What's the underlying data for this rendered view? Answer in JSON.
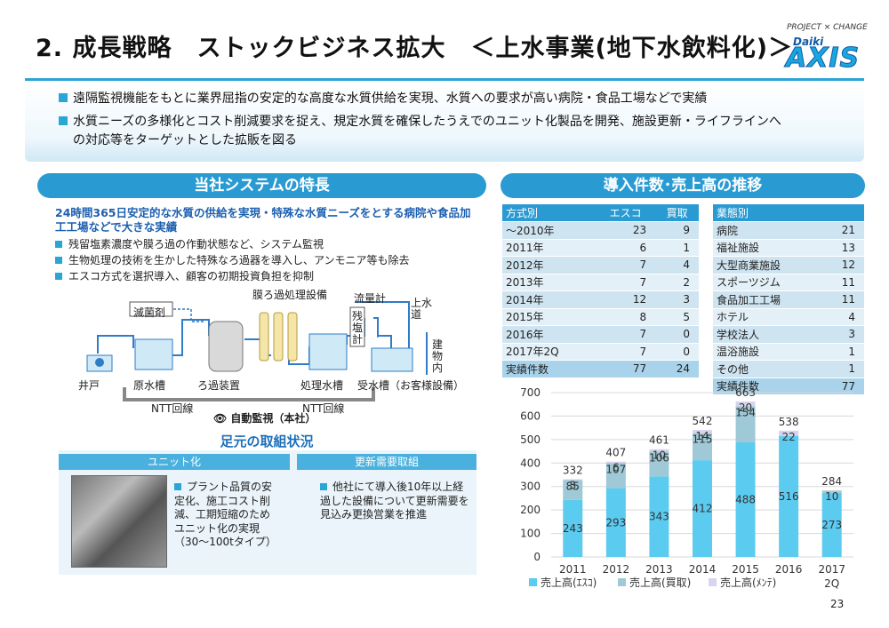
{
  "header": {
    "title": "2. 成長戦略　ストックビジネス拡大　＜上水事業(地下水飲料化)＞",
    "logo_tag": "PROJECT × CHANGE",
    "logo_daiki": "Daiki",
    "logo_axis": "AXIS"
  },
  "bullets": [
    "遠隔監視機能をもとに業界屈指の安定的な高度な水質供給を実現、水質への要求が高い病院・食品工場などで実績",
    "水質ニーズの多様化とコスト削減要求を捉え、規定水質を確保したうえでのユニット化製品を開発、施設更新・ライフラインへ",
    "の対応等をターゲットとした拡販を図る"
  ],
  "features": {
    "heading": "当社システムの特長",
    "lead": "24時間365日安定的な水質の供給を実現・特殊な水質ニーズをとする病院や食品加工工場などで大きな実績",
    "points": [
      "残留塩素濃度や膜ろ過の作動状態など、システム監視",
      "生物処理の技術を生かした特殊なろ過器を導入し、アンモニア等も除去",
      "エスコ方式を選択導入、顧客の初期投資負担を抑制"
    ]
  },
  "diagram": {
    "membrane": "膜ろ過処理設備",
    "flowmeter": "流量計",
    "disinfectant": "滅菌剤",
    "residual_chlorine": "残塩計",
    "water_supply": "上水道",
    "building": "建物内",
    "well": "井戸",
    "raw_tank": "原水槽",
    "filter": "ろ過装置",
    "treat_tank": "処理水槽",
    "recv_tank": "受水槽（お客様設備）",
    "ntt_left": "NTT回線",
    "ntt_right": "NTT回線",
    "monitor": "自動監視（本社）"
  },
  "initiatives": {
    "heading": "足元の取組状況",
    "unit_head": "ユニット化",
    "unit_text": "プラント品質の安定化、施工コスト削減、工期短縮のためユニット化の実現（30～100tタイプ）",
    "renew_head": "更新需要取組",
    "renew_text": "他社にて導入後10年以上経過した設備について更新需要を見込み更換営業を推進"
  },
  "trend": {
    "heading": "導入件数･売上高の推移",
    "table1": {
      "headers": [
        "方式別",
        "エスコ",
        "買取"
      ],
      "rows": [
        [
          "～2010年",
          "23",
          "9"
        ],
        [
          "2011年",
          "6",
          "1"
        ],
        [
          "2012年",
          "7",
          "4"
        ],
        [
          "2013年",
          "7",
          "2"
        ],
        [
          "2014年",
          "12",
          "3"
        ],
        [
          "2015年",
          "8",
          "5"
        ],
        [
          "2016年",
          "7",
          "0"
        ],
        [
          "2017年2Q",
          "7",
          "0"
        ]
      ],
      "total": [
        "実績件数",
        "77",
        "24"
      ]
    },
    "table2": {
      "headers": [
        "業態別",
        ""
      ],
      "rows": [
        [
          "病院",
          "21"
        ],
        [
          "福祉施設",
          "13"
        ],
        [
          "大型商業施設",
          "12"
        ],
        [
          "スポーツジム",
          "11"
        ],
        [
          "食品加工工場",
          "11"
        ],
        [
          "ホテル",
          "4"
        ],
        [
          "学校法人",
          "3"
        ],
        [
          "温浴施設",
          "1"
        ],
        [
          "その他",
          "1"
        ]
      ],
      "total": [
        "実績件数",
        "77"
      ]
    }
  },
  "chart_data": {
    "type": "bar",
    "stacked": true,
    "categories": [
      "2011",
      "2012",
      "2013",
      "2014",
      "2015",
      "2016",
      "2017"
    ],
    "category_sub": [
      "",
      "",
      "",
      "",
      "",
      "",
      "2Q"
    ],
    "series": [
      {
        "name": "売上高(ｴｽｺ)",
        "values": [
          243,
          293,
          343,
          412,
          488,
          516,
          273
        ],
        "color": "#5ccbf0"
      },
      {
        "name": "売上高(買取)",
        "values": [
          85,
          107,
          106,
          115,
          154,
          null,
          10
        ],
        "color": "#9fc9d6"
      },
      {
        "name": "売上高(ﾒﾝﾃ)",
        "values": [
          3,
          6,
          10,
          14,
          20,
          22,
          null
        ],
        "color": "#d8d3ee"
      }
    ],
    "totals": [
      332,
      407,
      461,
      542,
      663,
      538,
      284
    ],
    "ylim": [
      0,
      700
    ],
    "yticks": [
      0,
      100,
      200,
      300,
      400,
      500,
      600,
      700
    ],
    "grid": true,
    "legend": "bottom"
  },
  "page_number": "23"
}
